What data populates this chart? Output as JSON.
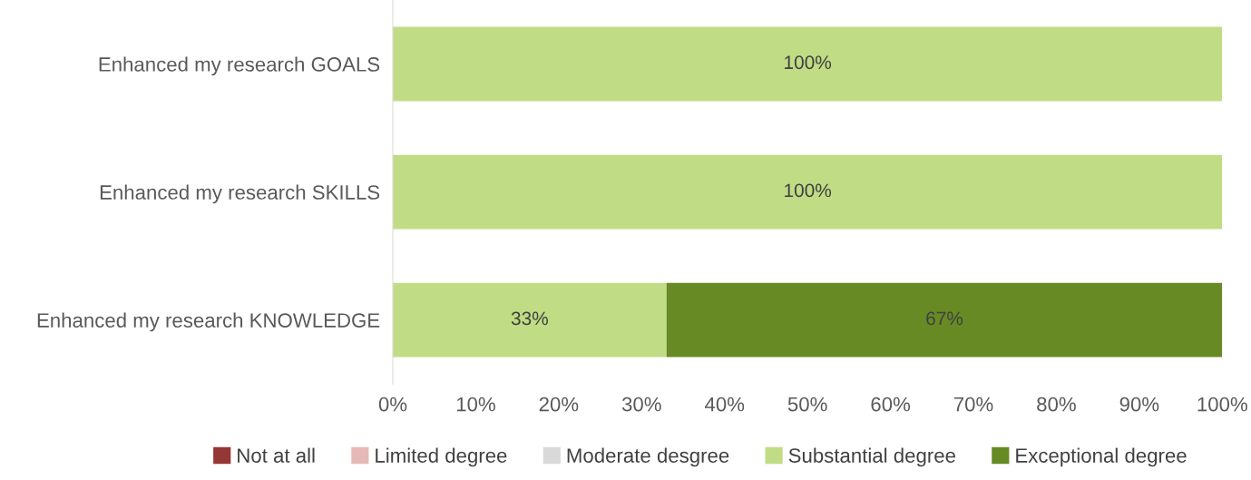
{
  "chart_data": {
    "type": "bar",
    "orientation": "horizontal",
    "stacked": true,
    "categories": [
      "Enhanced my research GOALS",
      "Enhanced my research SKILLS",
      "Enhanced my research KNOWLEDGE"
    ],
    "series": [
      {
        "name": "Not at all",
        "color": "#953735",
        "values": [
          0,
          0,
          0
        ],
        "value_labels": [
          null,
          null,
          null
        ]
      },
      {
        "name": "Limited degree",
        "color": "#e6b9b8",
        "values": [
          0,
          0,
          0
        ],
        "value_labels": [
          null,
          null,
          null
        ]
      },
      {
        "name": "Moderate desgree",
        "color": "#d9d9d9",
        "values": [
          0,
          0,
          0
        ],
        "value_labels": [
          null,
          null,
          null
        ]
      },
      {
        "name": "Substantial degree",
        "color": "#c0dc84",
        "values": [
          100,
          100,
          33
        ],
        "value_labels": [
          "100%",
          "100%",
          "33%"
        ]
      },
      {
        "name": "Exceptional degree",
        "color": "#678a25",
        "values": [
          0,
          0,
          67
        ],
        "value_labels": [
          null,
          null,
          "67%"
        ]
      }
    ],
    "xlim": [
      0,
      100
    ],
    "xticks": [
      {
        "value": 0,
        "label": "0%"
      },
      {
        "value": 10,
        "label": "10%"
      },
      {
        "value": 20,
        "label": "20%"
      },
      {
        "value": 30,
        "label": "30%"
      },
      {
        "value": 40,
        "label": "40%"
      },
      {
        "value": 50,
        "label": "50%"
      },
      {
        "value": 60,
        "label": "60%"
      },
      {
        "value": 70,
        "label": "70%"
      },
      {
        "value": 80,
        "label": "80%"
      },
      {
        "value": 90,
        "label": "90%"
      },
      {
        "value": 100,
        "label": "100%"
      }
    ],
    "grid": false,
    "legend": "bottom"
  }
}
